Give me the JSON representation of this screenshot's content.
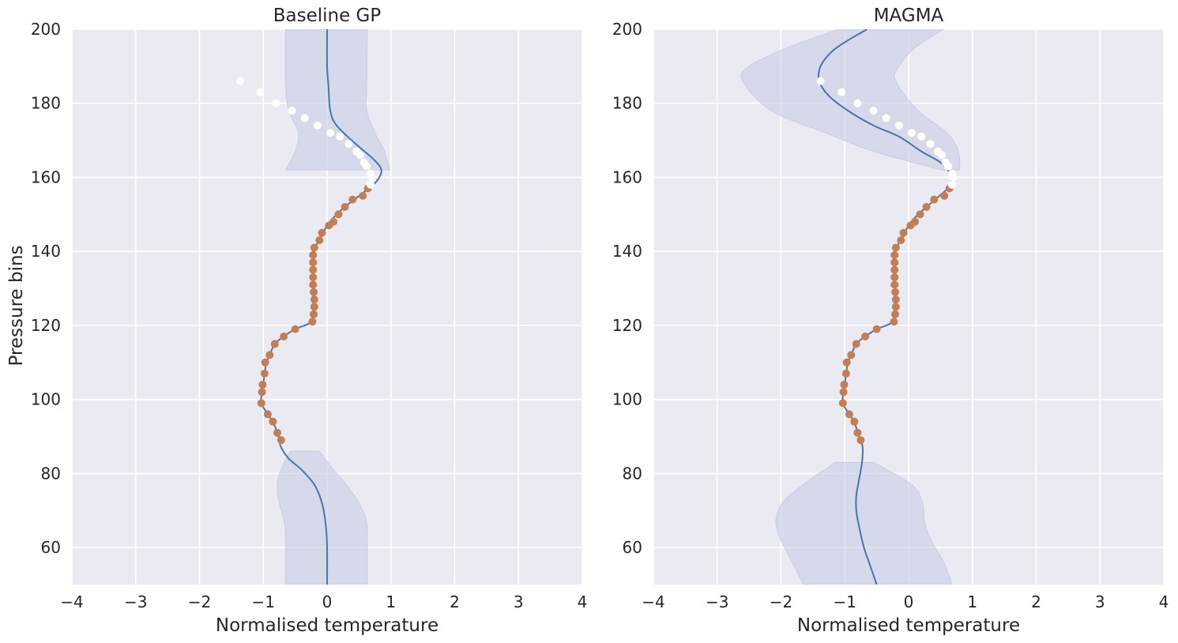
{
  "figure": {
    "ylabel": "Pressure bins"
  },
  "chart_data": [
    {
      "type": "line",
      "title": "Baseline GP",
      "xlabel": "Normalised temperature",
      "ylabel": "Pressure bins",
      "xlim": [
        -4,
        4
      ],
      "ylim": [
        50,
        200
      ],
      "xticks": [
        -4,
        -3,
        -2,
        -1,
        0,
        1,
        2,
        3,
        4
      ],
      "yticks": [
        60,
        80,
        100,
        120,
        140,
        160,
        180,
        200
      ],
      "xtick_labels": [
        "−4",
        "−3",
        "−2",
        "−1",
        "0",
        "1",
        "2",
        "3",
        "4"
      ],
      "ytick_labels": [
        "60",
        "80",
        "100",
        "120",
        "140",
        "160",
        "180",
        "200"
      ],
      "grid": true,
      "colors": {
        "background": "#eaeaf2",
        "mean": "#4c72b0",
        "band": "#c8cde4",
        "observed": "#c47e53",
        "held_out": "#ffffff"
      },
      "mean": [
        [
          0.0,
          50
        ],
        [
          0.0,
          60
        ],
        [
          -0.02,
          66
        ],
        [
          -0.08,
          72
        ],
        [
          -0.2,
          77
        ],
        [
          -0.4,
          81
        ],
        [
          -0.6,
          84
        ],
        [
          -0.72,
          87
        ],
        [
          -0.75,
          89
        ],
        [
          -0.78,
          91
        ],
        [
          -0.85,
          94
        ],
        [
          -0.93,
          96
        ],
        [
          -1.03,
          99
        ],
        [
          -1.02,
          102
        ],
        [
          -1.0,
          104
        ],
        [
          -0.98,
          107
        ],
        [
          -0.95,
          110
        ],
        [
          -0.9,
          112
        ],
        [
          -0.82,
          115
        ],
        [
          -0.68,
          117
        ],
        [
          -0.5,
          119
        ],
        [
          -0.25,
          121
        ],
        [
          -0.22,
          125
        ],
        [
          -0.22,
          130
        ],
        [
          -0.22,
          135
        ],
        [
          -0.22,
          140
        ],
        [
          -0.12,
          143
        ],
        [
          0.0,
          147
        ],
        [
          0.15,
          150
        ],
        [
          0.35,
          153
        ],
        [
          0.58,
          156
        ],
        [
          0.78,
          159
        ],
        [
          0.85,
          162
        ],
        [
          0.72,
          165
        ],
        [
          0.45,
          169
        ],
        [
          0.15,
          174
        ],
        [
          0.05,
          178
        ],
        [
          0.02,
          185
        ],
        [
          0.0,
          190
        ],
        [
          0.0,
          200
        ]
      ],
      "band": [
        [
          -0.65,
          0.63,
          50
        ],
        [
          -0.65,
          0.63,
          62
        ],
        [
          -0.67,
          0.62,
          67
        ],
        [
          -0.75,
          0.5,
          72
        ],
        [
          -0.78,
          0.3,
          77
        ],
        [
          -0.72,
          0.1,
          81
        ],
        [
          -0.58,
          -0.12,
          86
        ],
        [
          -0.65,
          0.98,
          162
        ],
        [
          -0.5,
          0.9,
          167
        ],
        [
          -0.45,
          0.75,
          172
        ],
        [
          -0.6,
          0.62,
          178
        ],
        [
          -0.65,
          0.62,
          185
        ],
        [
          -0.65,
          0.63,
          200
        ]
      ],
      "observed": [
        [
          -0.72,
          89
        ],
        [
          -0.78,
          91
        ],
        [
          -0.85,
          94
        ],
        [
          -0.93,
          96
        ],
        [
          -1.03,
          99
        ],
        [
          -1.02,
          102
        ],
        [
          -1.01,
          104
        ],
        [
          -0.98,
          107
        ],
        [
          -0.97,
          110
        ],
        [
          -0.9,
          112
        ],
        [
          -0.82,
          115
        ],
        [
          -0.68,
          117
        ],
        [
          -0.5,
          119
        ],
        [
          -0.23,
          121
        ],
        [
          -0.21,
          123
        ],
        [
          -0.2,
          125
        ],
        [
          -0.2,
          127
        ],
        [
          -0.21,
          129
        ],
        [
          -0.22,
          131
        ],
        [
          -0.22,
          133
        ],
        [
          -0.22,
          135
        ],
        [
          -0.22,
          137
        ],
        [
          -0.22,
          139
        ],
        [
          -0.2,
          141
        ],
        [
          -0.12,
          143
        ],
        [
          -0.08,
          145
        ],
        [
          0.03,
          147
        ],
        [
          0.1,
          148
        ],
        [
          0.18,
          150
        ],
        [
          0.28,
          152
        ],
        [
          0.4,
          154
        ],
        [
          0.56,
          155
        ],
        [
          0.64,
          157
        ]
      ],
      "held_out": [
        [
          -1.36,
          186
        ],
        [
          -1.05,
          183
        ],
        [
          -0.8,
          180
        ],
        [
          -0.55,
          178
        ],
        [
          -0.35,
          176
        ],
        [
          -0.15,
          174
        ],
        [
          0.05,
          172
        ],
        [
          0.2,
          171
        ],
        [
          0.34,
          169
        ],
        [
          0.46,
          167
        ],
        [
          0.52,
          166
        ],
        [
          0.58,
          164
        ],
        [
          0.62,
          163
        ],
        [
          0.68,
          161
        ],
        [
          0.7,
          160
        ],
        [
          0.68,
          158
        ]
      ]
    },
    {
      "type": "line",
      "title": "MAGMA",
      "xlabel": "Normalised temperature",
      "xlim": [
        -4,
        4
      ],
      "ylim": [
        50,
        200
      ],
      "xticks": [
        -4,
        -3,
        -2,
        -1,
        0,
        1,
        2,
        3,
        4
      ],
      "yticks": [
        60,
        80,
        100,
        120,
        140,
        160,
        180,
        200
      ],
      "xtick_labels": [
        "−4",
        "−3",
        "−2",
        "−1",
        "0",
        "1",
        "2",
        "3",
        "4"
      ],
      "ytick_labels": [
        "60",
        "80",
        "100",
        "120",
        "140",
        "160",
        "180",
        "200"
      ],
      "grid": true,
      "colors": {
        "background": "#eaeaf2",
        "mean": "#4c72b0",
        "band": "#c8cde4",
        "observed": "#c47e53",
        "held_out": "#ffffff"
      },
      "mean": [
        [
          -0.5,
          50
        ],
        [
          -0.6,
          55
        ],
        [
          -0.7,
          60
        ],
        [
          -0.78,
          66
        ],
        [
          -0.82,
          70
        ],
        [
          -0.82,
          74
        ],
        [
          -0.78,
          78
        ],
        [
          -0.73,
          83
        ],
        [
          -0.72,
          87
        ],
        [
          -0.75,
          89
        ],
        [
          -0.8,
          91
        ],
        [
          -0.85,
          94
        ],
        [
          -0.93,
          96
        ],
        [
          -1.03,
          99
        ],
        [
          -1.02,
          102
        ],
        [
          -1.0,
          104
        ],
        [
          -0.98,
          107
        ],
        [
          -0.95,
          110
        ],
        [
          -0.9,
          112
        ],
        [
          -0.82,
          115
        ],
        [
          -0.68,
          117
        ],
        [
          -0.5,
          119
        ],
        [
          -0.25,
          121
        ],
        [
          -0.22,
          125
        ],
        [
          -0.22,
          130
        ],
        [
          -0.22,
          135
        ],
        [
          -0.22,
          140
        ],
        [
          -0.12,
          143
        ],
        [
          0.0,
          147
        ],
        [
          0.15,
          150
        ],
        [
          0.35,
          153
        ],
        [
          0.55,
          156
        ],
        [
          0.66,
          158
        ],
        [
          0.65,
          161
        ],
        [
          0.5,
          164
        ],
        [
          0.2,
          167
        ],
        [
          -0.15,
          171
        ],
        [
          -0.55,
          174
        ],
        [
          -0.95,
          178
        ],
        [
          -1.25,
          182
        ],
        [
          -1.4,
          186
        ],
        [
          -1.38,
          190
        ],
        [
          -1.2,
          194
        ],
        [
          -0.95,
          197
        ],
        [
          -0.65,
          200
        ]
      ],
      "band": [
        [
          -1.65,
          0.68,
          50
        ],
        [
          -1.82,
          0.55,
          56
        ],
        [
          -2.0,
          0.35,
          62
        ],
        [
          -2.08,
          0.25,
          67
        ],
        [
          -1.98,
          0.22,
          72
        ],
        [
          -1.65,
          0.05,
          77
        ],
        [
          -1.15,
          -0.55,
          83
        ],
        [
          0.52,
          0.8,
          162
        ],
        [
          -0.55,
          0.78,
          167
        ],
        [
          -1.3,
          0.6,
          172
        ],
        [
          -2.15,
          0.15,
          178
        ],
        [
          -2.6,
          -0.2,
          186
        ],
        [
          -2.5,
          -0.15,
          190
        ],
        [
          -1.9,
          0.1,
          195
        ],
        [
          -1.1,
          0.55,
          200
        ]
      ],
      "observed": [
        [
          -0.75,
          89
        ],
        [
          -0.8,
          91
        ],
        [
          -0.85,
          94
        ],
        [
          -0.93,
          96
        ],
        [
          -1.03,
          99
        ],
        [
          -1.02,
          102
        ],
        [
          -1.01,
          104
        ],
        [
          -0.98,
          107
        ],
        [
          -0.97,
          110
        ],
        [
          -0.9,
          112
        ],
        [
          -0.82,
          115
        ],
        [
          -0.68,
          117
        ],
        [
          -0.5,
          119
        ],
        [
          -0.23,
          121
        ],
        [
          -0.21,
          123
        ],
        [
          -0.2,
          125
        ],
        [
          -0.2,
          127
        ],
        [
          -0.21,
          129
        ],
        [
          -0.22,
          131
        ],
        [
          -0.22,
          133
        ],
        [
          -0.22,
          135
        ],
        [
          -0.22,
          137
        ],
        [
          -0.22,
          139
        ],
        [
          -0.2,
          141
        ],
        [
          -0.12,
          143
        ],
        [
          -0.08,
          145
        ],
        [
          0.03,
          147
        ],
        [
          0.1,
          148
        ],
        [
          0.18,
          150
        ],
        [
          0.28,
          152
        ],
        [
          0.4,
          154
        ],
        [
          0.56,
          155
        ],
        [
          0.64,
          157
        ]
      ],
      "held_out": [
        [
          -1.38,
          186
        ],
        [
          -1.05,
          183
        ],
        [
          -0.8,
          180
        ],
        [
          -0.55,
          178
        ],
        [
          -0.35,
          176
        ],
        [
          -0.15,
          174
        ],
        [
          0.05,
          172
        ],
        [
          0.2,
          171
        ],
        [
          0.34,
          169
        ],
        [
          0.46,
          167
        ],
        [
          0.52,
          166
        ],
        [
          0.58,
          164
        ],
        [
          0.62,
          163
        ],
        [
          0.68,
          161
        ],
        [
          0.7,
          160
        ],
        [
          0.68,
          158
        ]
      ]
    }
  ]
}
